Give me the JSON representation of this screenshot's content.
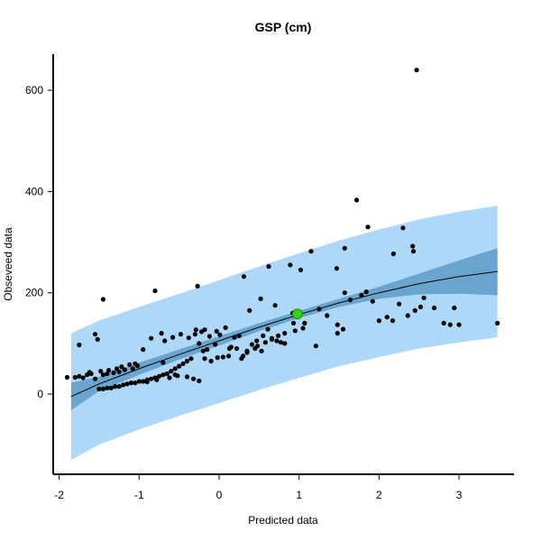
{
  "chart_data": {
    "type": "scatter",
    "title": "GSP (cm)",
    "xlabel": "Predicted data",
    "ylabel": "Obseveed data",
    "xlim": [
      -2,
      3.5
    ],
    "ylim": [
      -150,
      650
    ],
    "x_ticks": [
      -2,
      -1,
      0,
      1,
      2,
      3
    ],
    "x_tick_labels": [
      "-2",
      "-1",
      "0",
      "1",
      "2",
      "3"
    ],
    "y_ticks": [
      0,
      200,
      400,
      600
    ],
    "y_tick_labels": [
      "0",
      "200",
      "400",
      "600"
    ],
    "grid": false,
    "colors": {
      "prediction_band": "#add8f8",
      "confidence_band": "#6aa5cf",
      "fit_line": "#000000",
      "points": "#000000",
      "highlight_point": "#22dd00"
    },
    "fit_line": {
      "x": [
        -1.85,
        -1.5,
        -1.0,
        -0.5,
        0.0,
        0.5,
        1.0,
        1.5,
        2.0,
        2.5,
        3.0,
        3.48
      ],
      "y": [
        -5,
        20,
        50,
        78,
        105,
        132,
        157,
        180,
        200,
        218,
        232,
        242
      ]
    },
    "confidence_band": {
      "x": [
        -1.85,
        -1.5,
        -1.0,
        -0.5,
        0.0,
        0.5,
        1.0,
        1.5,
        2.0,
        2.5,
        3.0,
        3.48
      ],
      "lower": [
        -32,
        6,
        38,
        68,
        96,
        124,
        150,
        172,
        188,
        197,
        198,
        195
      ],
      "upper": [
        22,
        34,
        62,
        88,
        114,
        140,
        164,
        188,
        212,
        238,
        264,
        288
      ]
    },
    "prediction_band": {
      "x": [
        -1.85,
        -1.5,
        -1.0,
        -0.5,
        0.0,
        0.5,
        1.0,
        1.5,
        2.0,
        2.5,
        3.0,
        3.48
      ],
      "lower": [
        -130,
        -100,
        -70,
        -43,
        -18,
        8,
        32,
        55,
        73,
        90,
        102,
        112
      ],
      "upper": [
        120,
        145,
        172,
        198,
        225,
        252,
        278,
        303,
        325,
        345,
        360,
        372
      ]
    },
    "points": {
      "x": [
        2.47,
        1.72,
        1.86,
        2.3,
        2.42,
        2.43,
        2.18,
        1.84,
        1.57,
        1.47,
        0.89,
        1.15,
        0.62,
        0.31,
        1.02,
        -1.45,
        -0.8,
        -0.27,
        1.35,
        1.57,
        1.78,
        1.64,
        1.92,
        1.48,
        0.52,
        0.38,
        0.7,
        0.92,
        1.25,
        2.56,
        2.1,
        2.25,
        2.45,
        2.52,
        2.36,
        2.0,
        2.17,
        2.69,
        2.81,
        2.94,
        3.0,
        2.89,
        3.48,
        1.48,
        1.55,
        1.21,
        1.07,
        0.93,
        0.61,
        0.47,
        0.41,
        0.55,
        0.66,
        0.72,
        0.77,
        0.82,
        0.45,
        0.53,
        0.35,
        0.3,
        0.28,
        0.05,
        0.13,
        0.19,
        0.25,
        -0.05,
        -0.1,
        -0.15,
        -0.2,
        -0.25,
        -0.3,
        -0.35,
        -0.4,
        -0.45,
        -0.5,
        -0.55,
        -0.6,
        -0.65,
        -0.7,
        -0.75,
        -0.8,
        -0.85,
        -0.9,
        -0.95,
        -1.0,
        -1.05,
        -1.1,
        -1.15,
        -1.2,
        -1.25,
        -1.3,
        -1.35,
        -1.4,
        -1.45,
        -1.5,
        -1.55,
        -1.6,
        -1.65,
        -1.7,
        -1.75,
        -1.8,
        -1.9,
        -1.52,
        -1.55,
        -1.75,
        -0.68,
        -0.85,
        -0.72,
        -0.58,
        -0.48,
        -0.38,
        -0.29,
        -0.22,
        -0.18,
        -0.12,
        -0.03,
        0.01,
        0.08,
        0.15,
        0.22,
        -0.95,
        -1.02,
        -1.08,
        -1.18,
        -1.25,
        -1.32,
        -1.4,
        -1.45,
        -0.9,
        -0.78,
        -0.62,
        -0.52,
        -0.32,
        -0.25,
        -0.4,
        -0.55,
        -0.7,
        -1.05,
        -1.12,
        -1.22,
        -1.28,
        -1.38,
        -1.48,
        -1.62,
        -0.18,
        -0.02,
        0.12,
        0.35,
        0.48,
        0.58,
        0.66,
        0.74,
        0.82,
        0.95,
        1.05
      ],
      "y": [
        640,
        383,
        330,
        328,
        292,
        282,
        277,
        202,
        288,
        248,
        255,
        282,
        252,
        232,
        245,
        187,
        204,
        213,
        155,
        200,
        195,
        186,
        183,
        137,
        188,
        165,
        175,
        160,
        168,
        190,
        152,
        178,
        165,
        172,
        155,
        145,
        145,
        170,
        140,
        170,
        137,
        137,
        140,
        120,
        128,
        95,
        140,
        140,
        128,
        105,
        98,
        115,
        110,
        105,
        102,
        100,
        90,
        85,
        82,
        75,
        70,
        73,
        90,
        112,
        115,
        98,
        65,
        88,
        85,
        100,
        118,
        70,
        65,
        60,
        55,
        50,
        45,
        40,
        38,
        35,
        32,
        30,
        28,
        25,
        25,
        22,
        22,
        20,
        18,
        15,
        15,
        12,
        12,
        10,
        10,
        30,
        40,
        38,
        32,
        35,
        33,
        33,
        108,
        118,
        97,
        105,
        110,
        120,
        112,
        118,
        111,
        127,
        123,
        127,
        114,
        124,
        117,
        131,
        93,
        90,
        88,
        56,
        50,
        48,
        44,
        42,
        40,
        38,
        24,
        28,
        32,
        36,
        30,
        26,
        34,
        38,
        62,
        60,
        58,
        54,
        50,
        47,
        45,
        43,
        70,
        72,
        75,
        85,
        95,
        102,
        108,
        115,
        120,
        125,
        130
      ],
      "highlight": {
        "x": 0.98,
        "y": 158
      }
    }
  }
}
